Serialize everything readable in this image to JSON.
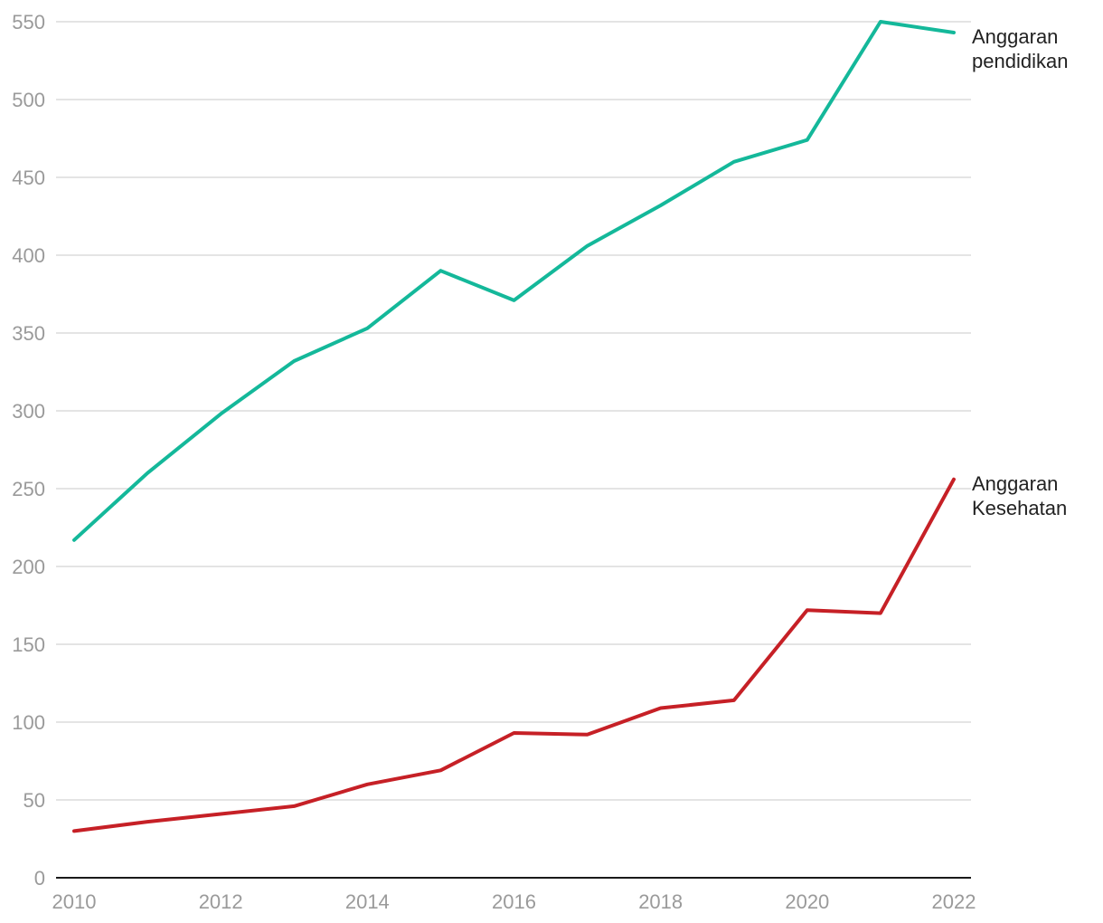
{
  "chart_data": {
    "type": "line",
    "title": "",
    "xlabel": "",
    "ylabel": "",
    "x": [
      2010,
      2011,
      2012,
      2013,
      2014,
      2015,
      2016,
      2017,
      2018,
      2019,
      2020,
      2021,
      2022
    ],
    "x_ticks": [
      2010,
      2012,
      2014,
      2016,
      2018,
      2020,
      2022
    ],
    "y_ticks": [
      0,
      50,
      100,
      150,
      200,
      250,
      300,
      350,
      400,
      450,
      500,
      550
    ],
    "xlim": [
      2010,
      2022
    ],
    "ylim": [
      0,
      550
    ],
    "grid": true,
    "legend": "direct labels at line ends",
    "series": [
      {
        "name": "Anggaran pendidikan",
        "label_lines": [
          "Anggaran",
          "pendidikan"
        ],
        "color": "#14b89a",
        "values": [
          217,
          260,
          298,
          332,
          353,
          390,
          371,
          406,
          432,
          460,
          474,
          550,
          543
        ]
      },
      {
        "name": "Anggaran Kesehatan",
        "label_lines": [
          "Anggaran",
          "Kesehatan"
        ],
        "color": "#c62026",
        "values": [
          30,
          36,
          41,
          46,
          60,
          69,
          93,
          92,
          109,
          114,
          172,
          170,
          256
        ]
      }
    ]
  }
}
